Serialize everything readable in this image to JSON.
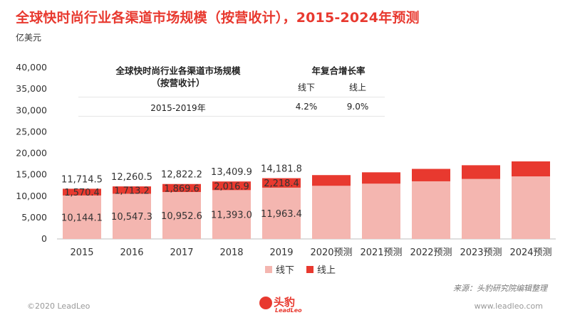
{
  "header": {
    "title": "全球快时尚行业各渠道市场规模（按营收计），2015-2024年预测",
    "unit": "亿美元"
  },
  "table": {
    "title_line1": "全球快时尚行业各渠道市场规模",
    "title_line2": "（按营收计）",
    "col_header": "年复合增长率",
    "sub_offline": "线下",
    "sub_online": "线上",
    "row_label": "2015-2019年",
    "offline_cagr": "4.2%",
    "online_cagr": "9.0%"
  },
  "footer": {
    "source": "来源：头豹研究院编辑整理",
    "copyright": "©2020 LeadLeo",
    "url": "www.leadleo.com",
    "logo_text": "头豹",
    "logo_sub": "LeadLeo"
  },
  "colors": {
    "offline": "#f4b6b0",
    "online": "#e8392f",
    "accent": "#e8392f"
  },
  "chart_data": {
    "type": "bar",
    "stacked": true,
    "title": "全球快时尚行业各渠道市场规模（按营收计），2015-2024年预测",
    "ylabel": "亿美元",
    "ylim": [
      0,
      40000
    ],
    "yticks": [
      "0",
      "5,000",
      "10,000",
      "15,000",
      "20,000",
      "25,000",
      "30,000",
      "35,000",
      "40,000"
    ],
    "categories": [
      "2015",
      "2016",
      "2017",
      "2018",
      "2019",
      "2020预测",
      "2021预测",
      "2022预测",
      "2023预测",
      "2024预测"
    ],
    "series": [
      {
        "name": "线下",
        "values": [
          10144.1,
          10547.3,
          10952.6,
          11393.0,
          11963.4,
          12400,
          12900,
          13450,
          14000,
          14600
        ]
      },
      {
        "name": "线上",
        "values": [
          1570.4,
          1713.2,
          1869.6,
          2016.9,
          2218.4,
          2500,
          2650,
          2900,
          3200,
          3500
        ]
      }
    ],
    "labels_offline": [
      "10,144.1",
      "10,547.3",
      "10,952.6",
      "11,393.0",
      "11,963.4"
    ],
    "labels_online": [
      "1,570.4",
      "1,713.2",
      "1,869.6",
      "2,016.9",
      "2,218.4"
    ],
    "labels_total": [
      "11,714.5",
      "12,260.5",
      "12,822.2",
      "13,409.9",
      "14,181.8"
    ],
    "legend": [
      "线下",
      "线上"
    ],
    "legend_position": "bottom-center",
    "grid": false
  }
}
